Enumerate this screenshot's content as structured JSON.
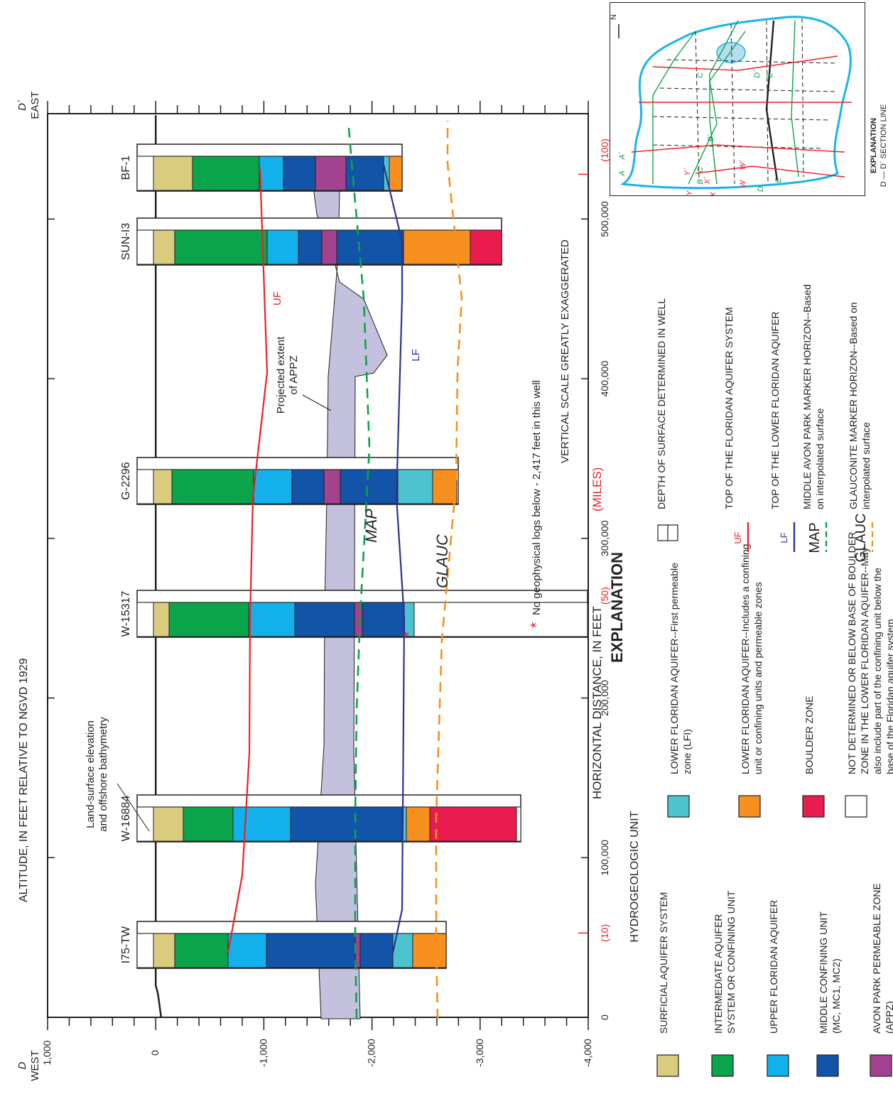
{
  "axes": {
    "y_label": "ALTITUDE, IN FEET RELATIVE TO NGVD 1929",
    "y_ticks": [
      "1,000",
      "0",
      "-1,000",
      "-2,000",
      "-3,000",
      "-4,000"
    ],
    "x_label_main": "HORIZONTAL DISTANCE, IN FEET",
    "x_label_miles": "(MILES)",
    "x_ticks": [
      "0",
      "100,000",
      "200,000",
      "300,000",
      "400,000",
      "500,000"
    ],
    "mile_ticks": [
      "(10)",
      "(50)",
      "(100)"
    ],
    "west_letter": "D",
    "west_word": "WEST",
    "east_letter": "D´",
    "east_word": "EAST"
  },
  "wells": [
    "I75-TW",
    "W-16884",
    "W-15317",
    "G-2296",
    "SUN-I3",
    "BF-1"
  ],
  "surface_labels": {
    "uf": "UF",
    "lf": "LF",
    "map": "MAP",
    "glauc": "GLAUC"
  },
  "annotations": {
    "land_surface_1": "Land-surface elevation",
    "land_surface_2": "and offshore bathymetry",
    "appz_1": "Projected extent",
    "appz_2": "of APPZ",
    "no_logs_star": "*",
    "no_logs_text": "No geophysical logs below - 2,417 feet in this well",
    "vertical_scale": "VERTICAL SCALE GREATLY EXAGGERATED"
  },
  "explanation": {
    "title": "EXPLANATION",
    "units_heading": "HYDROGEOLOGIC UNIT",
    "units": [
      {
        "lines": [
          "SURFICIAL AQUIFER SYSTEM"
        ],
        "color": "#d9cc7f"
      },
      {
        "lines": [
          "INTERMEDIATE AQUIFER",
          "SYSTEM OR CONFINING UNIT"
        ],
        "color": "#0aa44b"
      },
      {
        "lines": [
          "UPPER FLORIDAN AQUIFER"
        ],
        "color": "#12b1ec"
      },
      {
        "lines": [
          "MIDDLE CONFINING UNIT",
          "(MC, MC1, MC2)"
        ],
        "color": "#1254a7"
      },
      {
        "lines": [
          "AVON PARK PERMEABLE ZONE",
          "(APPZ)"
        ],
        "color": "#a3428e"
      },
      {
        "lines": [
          "LOWER FLORIDAN AQUIFER--First permeable",
          "zone (LFI)"
        ],
        "color": "#4cc3cf"
      },
      {
        "lines": [
          "LOWER FLORIDAN AQUIFER--Includes a confining",
          "unit or confining units and permeable zones"
        ],
        "color": "#f7901e"
      },
      {
        "lines": [
          "BOULDER ZONE"
        ],
        "color": "#ea1c4f"
      },
      {
        "lines": [
          "NOT DETERMINED OR BELOW BASE OF BOULDER",
          "ZONE IN THE LOWER FLORIDAN AQUIFER--May",
          "also include part of the confining unit below the",
          "base of the Floridan aquifer system"
        ],
        "color": "#ffffff"
      }
    ],
    "symbols": [
      {
        "key": "",
        "lines": [
          "DEPTH OF SURFACE DETERMINED IN WELL"
        ]
      },
      {
        "key": "UF",
        "lines": [
          "TOP OF THE FLORIDAN AQUIFER SYSTEM"
        ]
      },
      {
        "key": "LF",
        "lines": [
          "TOP OF THE LOWER FLORIDAN AQUIFER"
        ]
      },
      {
        "key": "MAP",
        "lines": [
          "MIDDLE AVON PARK MARKER HORIZON--Based",
          "on interpolated surface"
        ]
      },
      {
        "key": "GLAUC",
        "lines": [
          "GLAUCONITE MARKER HORIZON--Based on",
          "interpolated surface"
        ]
      }
    ]
  },
  "inset_map": {
    "labels": [
      "A",
      "A´",
      "B",
      "B´",
      "C",
      "C´",
      "D",
      "D´",
      "E",
      "E´",
      "W",
      "W´",
      "X",
      "X´",
      "Y",
      "Y´"
    ],
    "north": "N",
    "explanation": "EXPLANATION",
    "section_line": "D — D´ SECTION LINE"
  },
  "colors": {
    "uf_line": "#ec2027",
    "lf_line": "#2e3192",
    "map_line": "#0aa44b",
    "glauc_line": "#f7901e",
    "appz_band": "#c4c1de",
    "miles_red": "#ec2027",
    "water": "#19b5ea"
  }
}
